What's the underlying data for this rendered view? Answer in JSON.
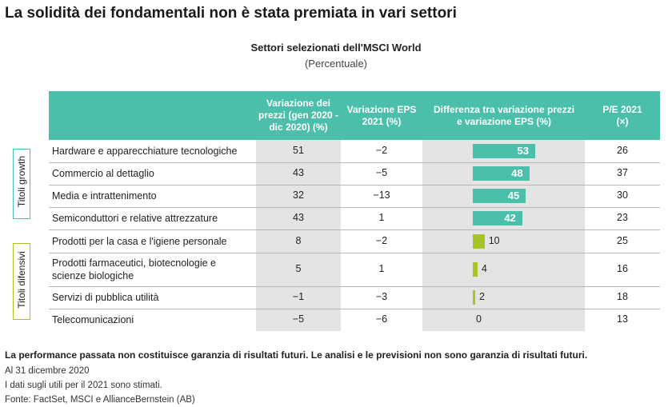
{
  "title": "La solidità dei fondamentali non è stata premiata in vari settori",
  "subtitle": "Settori selezionati dell'MSCI World",
  "units": "(Percentuale)",
  "columns": {
    "price_change": "Variazione dei prezzi (gen 2020 - dic 2020) (%)",
    "eps_change": "Variazione EPS 2021 (%)",
    "difference": "Differenza tra variazione prezzi e variazione EPS (%)",
    "pe": "P/E 2021 (×)"
  },
  "groups": {
    "growth": "Titoli growth",
    "defensive": "Titoli difensivi"
  },
  "colors": {
    "header": "#4cbfab",
    "growth": "#4cbfab",
    "defensive": "#a6c42a",
    "shade": "#e4e4e4"
  },
  "chart_data": {
    "type": "table",
    "title": "La solidità dei fondamentali non è stata premiata in vari settori",
    "subtitle": "Settori selezionati dell'MSCI World",
    "rows": [
      {
        "group": "growth",
        "sector": "Hardware e apparecchiature tecnologiche",
        "price": "51",
        "eps": "−2",
        "diff": 53,
        "diff_label": "53",
        "pe": "26"
      },
      {
        "group": "growth",
        "sector": "Commercio al dettaglio",
        "price": "43",
        "eps": "−5",
        "diff": 48,
        "diff_label": "48",
        "pe": "37"
      },
      {
        "group": "growth",
        "sector": "Media e intrattenimento",
        "price": "32",
        "eps": "−13",
        "diff": 45,
        "diff_label": "45",
        "pe": "30"
      },
      {
        "group": "growth",
        "sector": "Semiconduttori e relative attrezzature",
        "price": "43",
        "eps": "1",
        "diff": 42,
        "diff_label": "42",
        "pe": "23"
      },
      {
        "group": "defensive",
        "sector": "Prodotti per la casa e l'igiene personale",
        "price": "8",
        "eps": "−2",
        "diff": 10,
        "diff_label": "10",
        "pe": "25"
      },
      {
        "group": "defensive",
        "sector": "Prodotti farmaceutici, biotecnologie e scienze biologiche",
        "price": "5",
        "eps": "1",
        "diff": 4,
        "diff_label": "4",
        "pe": "16"
      },
      {
        "group": "defensive",
        "sector": "Servizi di pubblica utilità",
        "price": "−1",
        "eps": "−3",
        "diff": 2,
        "diff_label": "2",
        "pe": "18"
      },
      {
        "group": "defensive",
        "sector": "Telecomunicazioni",
        "price": "−5",
        "eps": "−6",
        "diff": 0,
        "diff_label": "0",
        "pe": "13"
      }
    ]
  },
  "footnotes": {
    "disclaimer": "La performance passata non costituisce garanzia di risultati futuri. Le analisi e le previsioni non sono garanzia di risultati futuri.",
    "date": "Al 31 dicembre 2020",
    "estimates": "I dati sugli utili per il 2021 sono stimati.",
    "source": "Fonte: FactSet, MSCI e AllianceBernstein (AB)"
  }
}
